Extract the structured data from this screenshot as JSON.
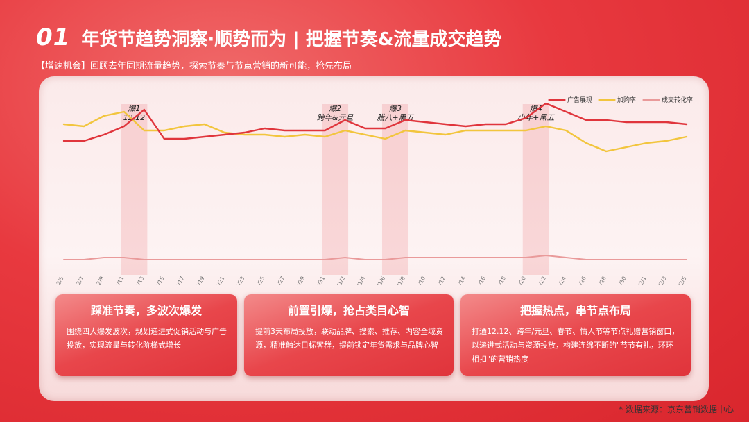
{
  "header": {
    "number": "01",
    "title": "年货节趋势洞察·顺势而为 | 把握节奏&流量成交趋势",
    "subtitle": "【增速机会】回顾去年同期流量趋势，探索节奏与节点营销的新可能，抢先布局"
  },
  "chart_data": {
    "type": "line",
    "categories": [
      "2024/12/5",
      "2024/12/7",
      "2024/12/9",
      "2024/12/11",
      "2024/12/13",
      "2024/12/15",
      "2024/12/17",
      "2024/12/19",
      "2024/12/21",
      "2024/12/23",
      "2024/12/25",
      "2024/12/27",
      "2024/12/29",
      "2024/12/31",
      "2025/1/2",
      "2025/1/4",
      "2025/1/6",
      "2025/1/8",
      "2025/1/10",
      "2025/1/12",
      "2025/1/14",
      "2025/1/16",
      "2025/1/18",
      "2025/1/20",
      "2025/1/22",
      "2025/1/24",
      "2025/1/26",
      "2025/1/28",
      "2025/1/30",
      "2025/2/1",
      "2025/2/3",
      "2025/2/5"
    ],
    "legend_position": "top-right",
    "grid": false,
    "ylim": [
      0,
      100
    ],
    "series": [
      {
        "name": "广告展现",
        "color": "#e0353c",
        "values": [
          69,
          69,
          72,
          76,
          84,
          70,
          70,
          71,
          72,
          73,
          75,
          74,
          74,
          74,
          79,
          75,
          75,
          79,
          78,
          77,
          76,
          77,
          77,
          80,
          87,
          83,
          79,
          79,
          78,
          78,
          78,
          77
        ]
      },
      {
        "name": "加购率",
        "color": "#f2c53d",
        "values": [
          77,
          76,
          81,
          83,
          74,
          74,
          76,
          77,
          73,
          72,
          72,
          71,
          72,
          71,
          74,
          72,
          70,
          74,
          73,
          72,
          74,
          74,
          74,
          74,
          76,
          74,
          68,
          64,
          66,
          68,
          69,
          71
        ]
      },
      {
        "name": "成交转化率",
        "color": "#e99a9a",
        "values": [
          12,
          12,
          13,
          13,
          12,
          12,
          12,
          12,
          12,
          12,
          12,
          12,
          12,
          12,
          13,
          12,
          12,
          13,
          13,
          13,
          13,
          13,
          13,
          13,
          14,
          13,
          12,
          12,
          12,
          12,
          12,
          12
        ]
      }
    ],
    "annotations": [
      {
        "line1": "爆1",
        "line2": "12.12",
        "category_index": 3.5
      },
      {
        "line1": "爆2",
        "line2": "跨年&元旦",
        "category_index": 13.5
      },
      {
        "line1": "爆3",
        "line2": "腊八+黑五",
        "category_index": 16.5
      },
      {
        "line1": "爆4",
        "line2": "小年+黑五",
        "category_index": 23.5
      }
    ]
  },
  "cards": [
    {
      "title": "踩准节奏，多波次爆发",
      "body": "围绕四大爆发波次，规划递进式促销活动与广告投放，实现流量与转化阶梯式增长"
    },
    {
      "title": "前置引爆，抢占类目心智",
      "body": "提前3天布局投放，联动品牌、搜索、推荐、内容全域资源，精准触达目标客群，提前锁定年货需求与品牌心智"
    },
    {
      "title": "把握热点，串节点布局",
      "body": "打通12.12、跨年/元旦、春节、情人节等节点礼赠营销窗口，以递进式活动与资源投放，构建连绵不断的\"节节有礼，环环相扣\"的营销热度"
    }
  ],
  "source": "* 数据来源：京东营销数据中心"
}
